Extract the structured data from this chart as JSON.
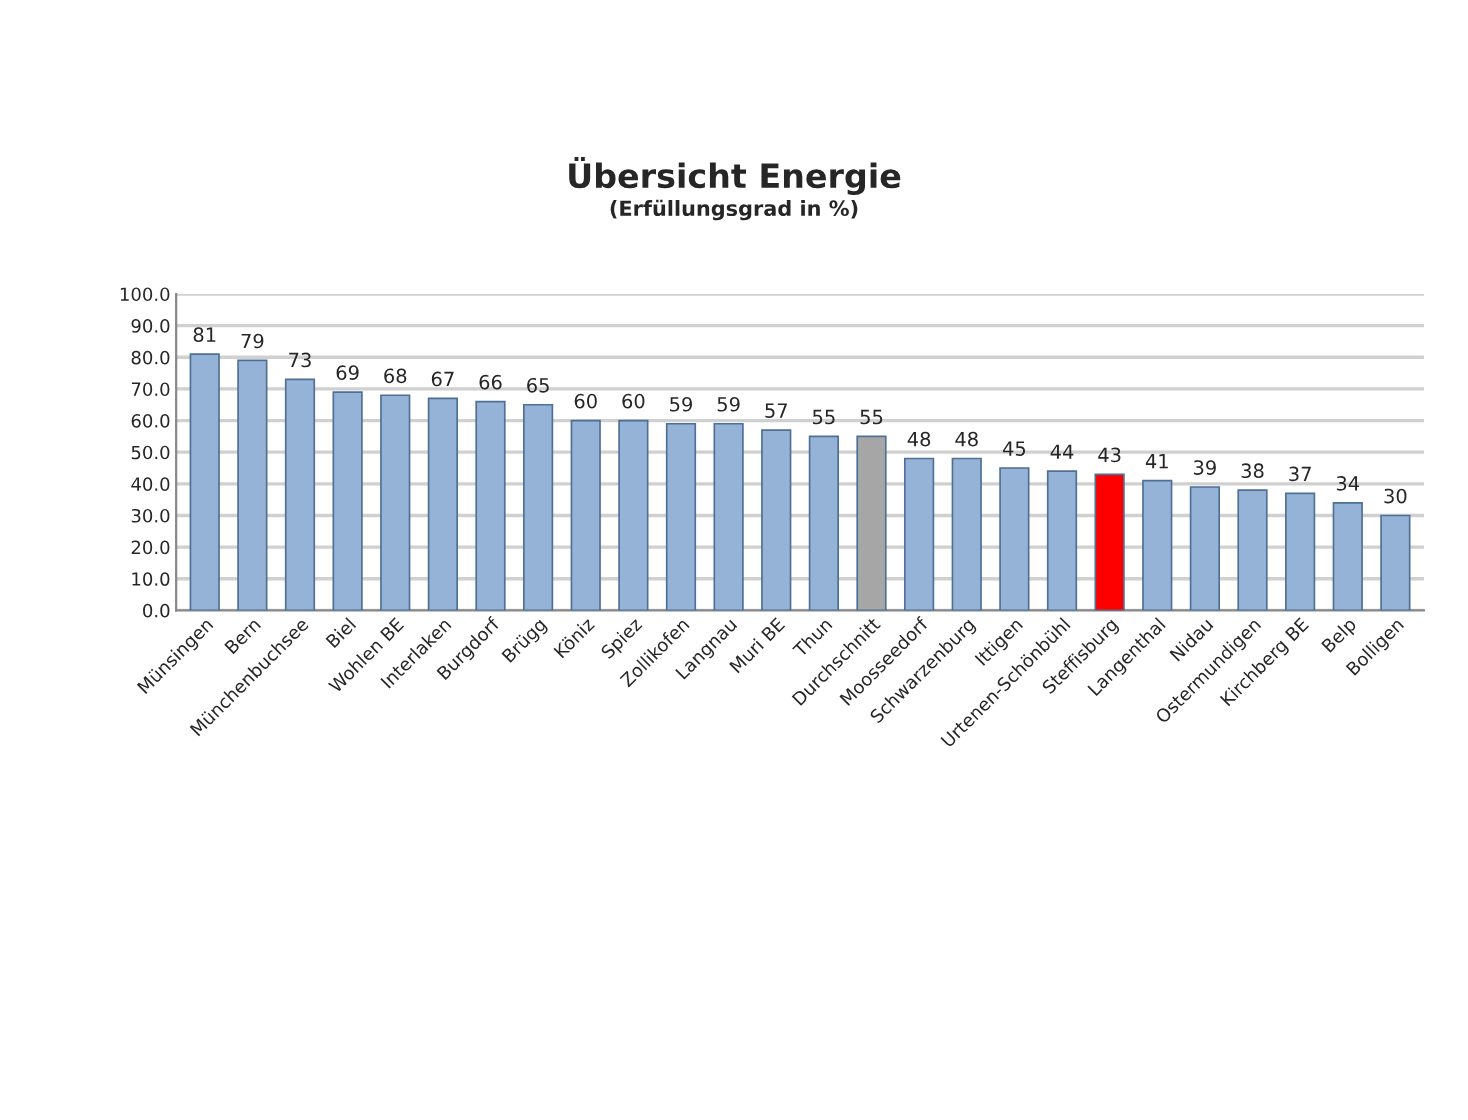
{
  "chart_data": {
    "type": "bar",
    "title": "Übersicht Energie",
    "subtitle": "(Erfüllungsgrad in %)",
    "categories": [
      "Münsingen",
      "Bern",
      "Münchenbuchsee",
      "Biel",
      "Wohlen BE",
      "Interlaken",
      "Burgdorf",
      "Brügg",
      "Köniz",
      "Spiez",
      "Zollikofen",
      "Langnau",
      "Muri BE",
      "Thun",
      "Durchschnitt",
      "Moosseedorf",
      "Schwarzenburg",
      "Ittigen",
      "Urtenen-Schönbühl",
      "Steffisburg",
      "Langenthal",
      "Nidau",
      "Ostermundigen",
      "Kirchberg BE",
      "Belp",
      "Bolligen"
    ],
    "values": [
      81,
      79,
      73,
      69,
      68,
      67,
      66,
      65,
      60,
      60,
      59,
      59,
      57,
      55,
      55,
      48,
      48,
      45,
      44,
      43,
      41,
      39,
      38,
      37,
      34,
      30
    ],
    "colors": [
      "#95b3d7",
      "#95b3d7",
      "#95b3d7",
      "#95b3d7",
      "#95b3d7",
      "#95b3d7",
      "#95b3d7",
      "#95b3d7",
      "#95b3d7",
      "#95b3d7",
      "#95b3d7",
      "#95b3d7",
      "#95b3d7",
      "#95b3d7",
      "#a6a6a6",
      "#95b3d7",
      "#95b3d7",
      "#95b3d7",
      "#95b3d7",
      "#ff0000",
      "#95b3d7",
      "#95b3d7",
      "#95b3d7",
      "#95b3d7",
      "#95b3d7",
      "#95b3d7"
    ],
    "ylim": [
      0,
      100
    ],
    "yticks": [
      {
        "value": 0,
        "label": "0.0"
      },
      {
        "value": 10,
        "label": "10.0"
      },
      {
        "value": 20,
        "label": "20.0"
      },
      {
        "value": 30,
        "label": "30.0"
      },
      {
        "value": 40,
        "label": "40.0"
      },
      {
        "value": 50,
        "label": "50.0"
      },
      {
        "value": 60,
        "label": "60.0"
      },
      {
        "value": 70,
        "label": "70.0"
      },
      {
        "value": 80,
        "label": "80.0"
      },
      {
        "value": 90,
        "label": "90.0"
      },
      {
        "value": 100,
        "label": "100.0"
      }
    ],
    "grid": "y",
    "data_labels": true
  }
}
